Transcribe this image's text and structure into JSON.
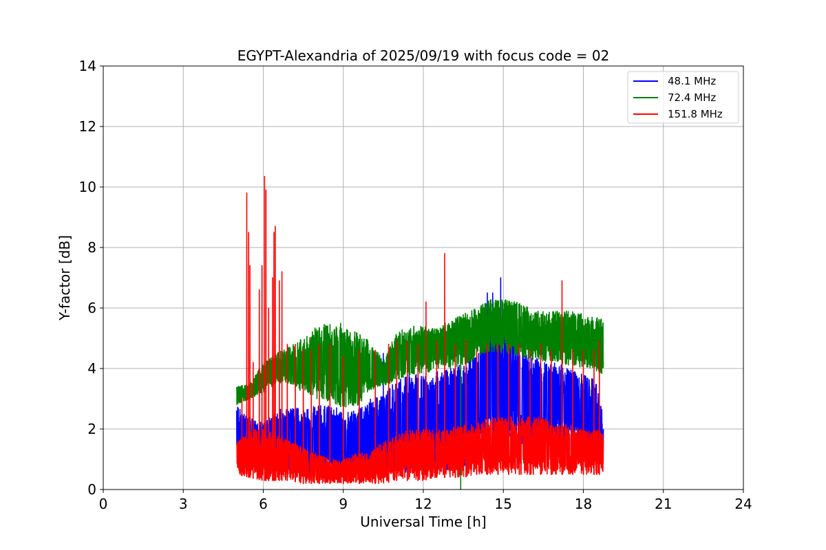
{
  "chart_data": {
    "type": "line",
    "title": "EGYPT-Alexandria of 2025/09/19 with focus code = 02",
    "xlabel": "Universal Time [h]",
    "ylabel": "Y-factor [dB]",
    "xlim": [
      0,
      24
    ],
    "ylim": [
      0,
      14
    ],
    "xticks": [
      0,
      3,
      6,
      9,
      12,
      15,
      18,
      21,
      24
    ],
    "yticks": [
      0,
      2,
      4,
      6,
      8,
      10,
      12,
      14
    ],
    "xtick_labels": [
      "0",
      "3",
      "6",
      "9",
      "12",
      "15",
      "18",
      "21",
      "24"
    ],
    "ytick_labels": [
      "0",
      "2",
      "4",
      "6",
      "8",
      "10",
      "12",
      "14"
    ],
    "grid": true,
    "legend_position": "top-right",
    "series": [
      {
        "name": "48.1 MHz",
        "legend_label": "  48.1 MHz",
        "color": "#0000ff",
        "x_range": [
          5.0,
          18.75
        ],
        "envelope": {
          "t": [
            5.0,
            5.5,
            6.0,
            6.5,
            7.0,
            7.5,
            8.0,
            8.5,
            9.0,
            9.5,
            10.0,
            10.5,
            11.0,
            11.5,
            12.0,
            12.5,
            13.0,
            13.5,
            14.0,
            14.5,
            15.0,
            15.5,
            16.0,
            16.5,
            17.0,
            17.5,
            18.0,
            18.5,
            18.75
          ],
          "low": [
            0.8,
            0.7,
            0.6,
            0.6,
            0.5,
            0.5,
            0.5,
            0.5,
            0.5,
            0.5,
            0.5,
            0.5,
            0.5,
            0.5,
            0.5,
            0.6,
            0.6,
            0.7,
            1.2,
            1.5,
            1.5,
            1.5,
            1.5,
            1.5,
            1.4,
            1.3,
            1.2,
            1.1,
            1.0
          ],
          "high": [
            2.8,
            2.4,
            2.2,
            2.6,
            2.8,
            2.6,
            2.8,
            2.8,
            2.6,
            2.6,
            3.0,
            3.2,
            3.6,
            3.8,
            3.8,
            3.9,
            4.0,
            4.2,
            4.6,
            6.0,
            5.6,
            4.8,
            4.5,
            4.2,
            4.2,
            4.0,
            3.8,
            3.6,
            2.5
          ]
        },
        "spikes": [
          [
            14.4,
            6.5
          ],
          [
            14.6,
            6.5
          ],
          [
            14.9,
            7.0
          ],
          [
            10.5,
            4.5
          ]
        ]
      },
      {
        "name": "72.4 MHz",
        "legend_label": "  72.4 MHz",
        "color": "#008000",
        "x_range": [
          5.0,
          18.75
        ],
        "envelope": {
          "t": [
            5.0,
            5.5,
            6.0,
            6.5,
            7.0,
            7.5,
            8.0,
            8.5,
            9.0,
            9.5,
            10.0,
            10.5,
            11.0,
            11.5,
            12.0,
            12.5,
            13.0,
            13.5,
            14.0,
            14.5,
            15.0,
            15.5,
            16.0,
            16.5,
            17.0,
            17.5,
            18.0,
            18.5,
            18.75
          ],
          "low": [
            2.8,
            3.0,
            3.2,
            3.5,
            3.5,
            3.2,
            3.0,
            2.9,
            2.7,
            2.7,
            3.3,
            3.4,
            3.6,
            3.8,
            3.8,
            4.0,
            4.0,
            4.1,
            4.3,
            4.5,
            4.5,
            4.4,
            4.3,
            4.2,
            4.2,
            4.1,
            4.0,
            3.9,
            3.8
          ],
          "high": [
            3.4,
            3.5,
            4.2,
            4.5,
            4.8,
            5.0,
            5.4,
            5.5,
            5.4,
            5.2,
            4.9,
            4.3,
            5.2,
            5.4,
            5.4,
            5.3,
            5.6,
            5.8,
            6.0,
            6.3,
            6.3,
            6.2,
            6.0,
            5.9,
            5.9,
            5.9,
            5.8,
            5.7,
            5.6
          ]
        },
        "spikes": [
          [
            13.4,
            0.0
          ],
          [
            8.9,
            5.5
          ]
        ]
      },
      {
        "name": "151.8 MHz",
        "legend_label": "151.8 MHz",
        "color": "#ff0000",
        "x_range": [
          5.0,
          18.75
        ],
        "envelope": {
          "t": [
            5.0,
            5.5,
            6.0,
            6.5,
            7.0,
            7.5,
            8.0,
            8.5,
            9.0,
            9.5,
            10.0,
            10.5,
            11.0,
            11.5,
            12.0,
            12.5,
            13.0,
            13.5,
            14.0,
            14.5,
            15.0,
            15.5,
            16.0,
            16.5,
            17.0,
            17.5,
            18.0,
            18.5,
            18.75
          ],
          "low": [
            0.5,
            0.4,
            0.3,
            0.3,
            0.3,
            0.2,
            0.2,
            0.2,
            0.2,
            0.2,
            0.2,
            0.2,
            0.3,
            0.3,
            0.3,
            0.4,
            0.4,
            0.4,
            0.5,
            0.5,
            0.5,
            0.5,
            0.5,
            0.5,
            0.5,
            0.5,
            0.5,
            0.5,
            0.5
          ],
          "high": [
            1.6,
            2.0,
            2.0,
            1.8,
            1.6,
            1.4,
            1.2,
            1.0,
            1.0,
            1.2,
            1.2,
            1.6,
            1.8,
            2.0,
            2.0,
            2.0,
            2.0,
            2.2,
            2.2,
            2.4,
            2.4,
            2.4,
            2.4,
            2.4,
            2.2,
            2.2,
            2.0,
            2.0,
            1.8
          ]
        },
        "spikes": [
          [
            5.2,
            3.0
          ],
          [
            5.38,
            9.8
          ],
          [
            5.45,
            8.5
          ],
          [
            5.5,
            7.4
          ],
          [
            5.62,
            4.2
          ],
          [
            5.85,
            6.6
          ],
          [
            5.95,
            7.4
          ],
          [
            6.05,
            10.35
          ],
          [
            6.1,
            9.9
          ],
          [
            6.2,
            6.0
          ],
          [
            6.35,
            7.0
          ],
          [
            6.4,
            8.5
          ],
          [
            6.45,
            8.7
          ],
          [
            6.6,
            6.9
          ],
          [
            6.7,
            7.2
          ],
          [
            6.9,
            4.8
          ],
          [
            7.2,
            4.8
          ],
          [
            7.5,
            4.6
          ],
          [
            7.8,
            4.6
          ],
          [
            8.1,
            4.8
          ],
          [
            8.5,
            4.8
          ],
          [
            9.0,
            4.4
          ],
          [
            9.6,
            4.6
          ],
          [
            10.2,
            4.6
          ],
          [
            10.7,
            4.8
          ],
          [
            11.0,
            4.9
          ],
          [
            11.4,
            4.9
          ],
          [
            11.8,
            4.8
          ],
          [
            12.1,
            6.2
          ],
          [
            12.5,
            4.9
          ],
          [
            12.8,
            7.8
          ],
          [
            13.2,
            4.8
          ],
          [
            13.6,
            4.9
          ],
          [
            14.0,
            4.6
          ],
          [
            14.4,
            4.8
          ],
          [
            14.8,
            4.8
          ],
          [
            15.2,
            4.8
          ],
          [
            15.6,
            4.8
          ],
          [
            16.0,
            4.6
          ],
          [
            16.4,
            4.8
          ],
          [
            16.8,
            4.6
          ],
          [
            17.2,
            6.9
          ],
          [
            17.6,
            4.6
          ],
          [
            18.0,
            4.6
          ],
          [
            18.4,
            4.6
          ],
          [
            18.6,
            4.9
          ]
        ]
      }
    ]
  }
}
